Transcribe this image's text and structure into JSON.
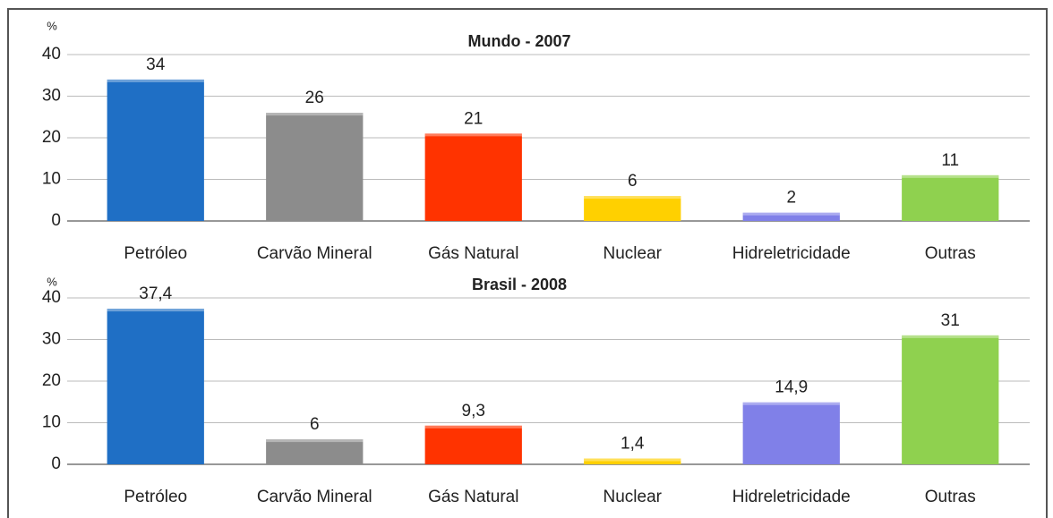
{
  "chart_data": [
    {
      "type": "bar",
      "title": "Mundo - 2007",
      "y_label": "%",
      "categories": [
        "Petróleo",
        "Carvão Mineral",
        "Gás Natural",
        "Nuclear",
        "Hidreletricidade",
        "Outras"
      ],
      "values": [
        34,
        26,
        21,
        6,
        2,
        11
      ],
      "colors": [
        "#1f6fc5",
        "#8c8c8c",
        "#ff3300",
        "#ffd000",
        "#8080e8",
        "#8fd14f"
      ],
      "ylim": [
        0,
        40
      ],
      "yticks": [
        0,
        10,
        20,
        30,
        40
      ],
      "grid": true
    },
    {
      "type": "bar",
      "title": "Brasil - 2008",
      "y_label": "%",
      "categories": [
        "Petróleo",
        "Carvão Mineral",
        "Gás Natural",
        "Nuclear",
        "Hidreletricidade",
        "Outras"
      ],
      "values": [
        37.4,
        6,
        9.3,
        1.4,
        14.9,
        31
      ],
      "value_labels": [
        "37,4",
        "6",
        "9,3",
        "1,4",
        "14,9",
        "31"
      ],
      "colors": [
        "#1f6fc5",
        "#8c8c8c",
        "#ff3300",
        "#ffd000",
        "#8080e8",
        "#8fd14f"
      ],
      "ylim": [
        0,
        40
      ],
      "yticks": [
        0,
        10,
        20,
        30,
        40
      ],
      "grid": true
    }
  ]
}
